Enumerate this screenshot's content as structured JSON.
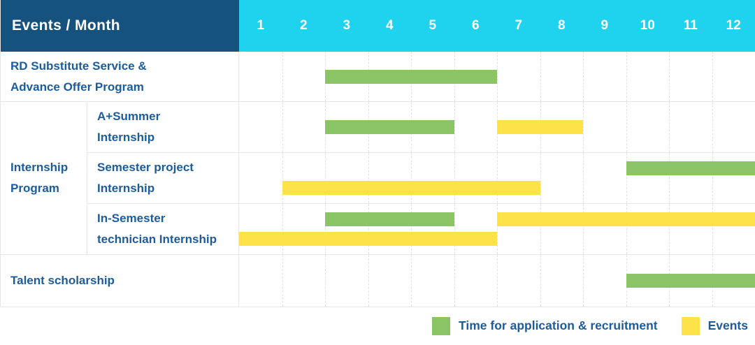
{
  "header": {
    "title": "Events / Month",
    "months": [
      "1",
      "2",
      "3",
      "4",
      "5",
      "6",
      "7",
      "8",
      "9",
      "10",
      "11",
      "12"
    ]
  },
  "colors": {
    "header_bg": "#15527D",
    "months_bg": "#1FD3EE",
    "label_text": "#1D5C9C",
    "application_green": "#8BC464",
    "events_yellow": "#FDE24A"
  },
  "legend": {
    "items": [
      {
        "series": "application",
        "label": "Time for application & recruitment",
        "color": "#8BC464"
      },
      {
        "series": "events",
        "label": "Events",
        "color": "#FDE24A"
      }
    ]
  },
  "chart_data": {
    "type": "bar",
    "subtype": "gantt-schedule",
    "title": "Events / Month",
    "x": {
      "unit": "month",
      "range": [
        1,
        12
      ],
      "ticks": [
        "1",
        "2",
        "3",
        "4",
        "5",
        "6",
        "7",
        "8",
        "9",
        "10",
        "11",
        "12"
      ]
    },
    "series_legend": [
      {
        "series": "application",
        "label": "Time for application & recruitment",
        "color": "#8BC464"
      },
      {
        "series": "events",
        "label": "Events",
        "color": "#FDE24A"
      }
    ],
    "rows": [
      {
        "group": null,
        "label": "RD Substitute Service &\nAdvance Offer Program",
        "lines": [
          [
            {
              "series": "application",
              "start_month": 3,
              "end_month": 6
            }
          ]
        ]
      },
      {
        "group": "Internship\nProgram",
        "label": "A+Summer\nInternship",
        "lines": [
          [
            {
              "series": "application",
              "start_month": 3,
              "end_month": 5
            },
            {
              "series": "events",
              "start_month": 7,
              "end_month": 8
            }
          ]
        ]
      },
      {
        "group": "Internship\nProgram",
        "label": "Semester project\nInternship",
        "lines": [
          [
            {
              "series": "application",
              "start_month": 10,
              "end_month": 12
            }
          ],
          [
            {
              "series": "events",
              "start_month": 2,
              "end_month": 7
            }
          ]
        ]
      },
      {
        "group": "Internship\nProgram",
        "label": "In-Semester\ntechnician Internship",
        "lines": [
          [
            {
              "series": "application",
              "start_month": 3,
              "end_month": 5
            },
            {
              "series": "events",
              "start_month": 7,
              "end_month": 12
            }
          ],
          [
            {
              "series": "events",
              "start_month": 1,
              "end_month": 6
            }
          ]
        ]
      },
      {
        "group": null,
        "label": "Talent scholarship",
        "lines": [
          [
            {
              "series": "application",
              "start_month": 10,
              "end_month": 12
            }
          ]
        ]
      }
    ]
  }
}
